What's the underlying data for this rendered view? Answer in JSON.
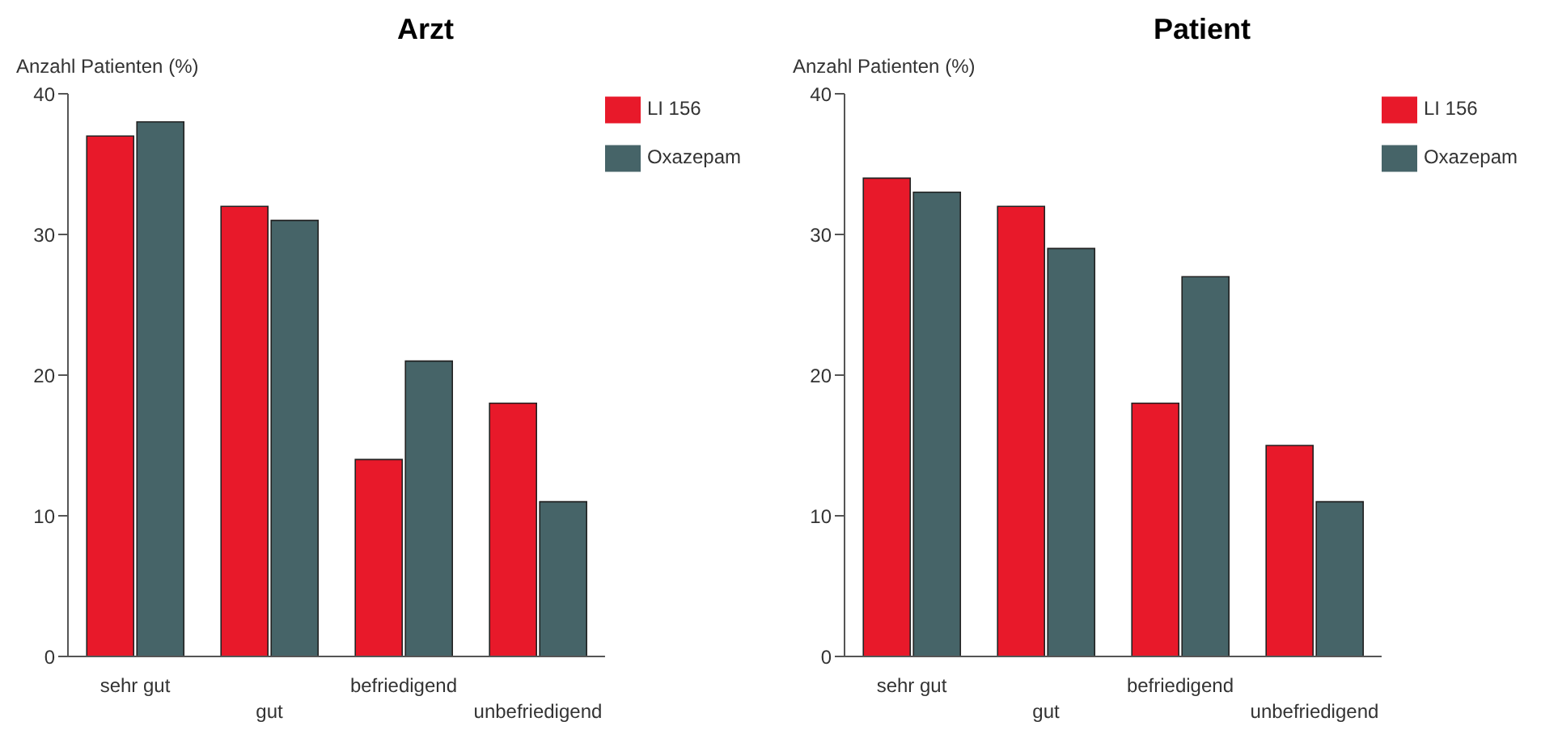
{
  "chart_data": [
    {
      "type": "bar",
      "title": "Arzt",
      "ylabel": "Anzahl Patienten (%)",
      "categories": [
        "sehr gut",
        "gut",
        "befriedigend",
        "unbefriedigend"
      ],
      "series": [
        {
          "name": "LI 156",
          "color": "#e8192a",
          "values": [
            37,
            32,
            14,
            18
          ]
        },
        {
          "name": "Oxazepam",
          "color": "#466468",
          "values": [
            38,
            31,
            21,
            11
          ]
        }
      ],
      "ylim": [
        0,
        40
      ],
      "yticks": [
        0,
        10,
        20,
        30,
        40
      ],
      "grid": false,
      "legend": "top right"
    },
    {
      "type": "bar",
      "title": "Patient",
      "ylabel": "Anzahl Patienten (%)",
      "categories": [
        "sehr gut",
        "gut",
        "befriedigend",
        "unbefriedigend"
      ],
      "series": [
        {
          "name": "LI 156",
          "color": "#e8192a",
          "values": [
            34,
            32,
            18,
            15
          ]
        },
        {
          "name": "Oxazepam",
          "color": "#466468",
          "values": [
            33,
            29,
            27,
            11
          ]
        }
      ],
      "ylim": [
        0,
        40
      ],
      "yticks": [
        0,
        10,
        20,
        30,
        40
      ],
      "grid": false,
      "legend": "top right"
    }
  ]
}
